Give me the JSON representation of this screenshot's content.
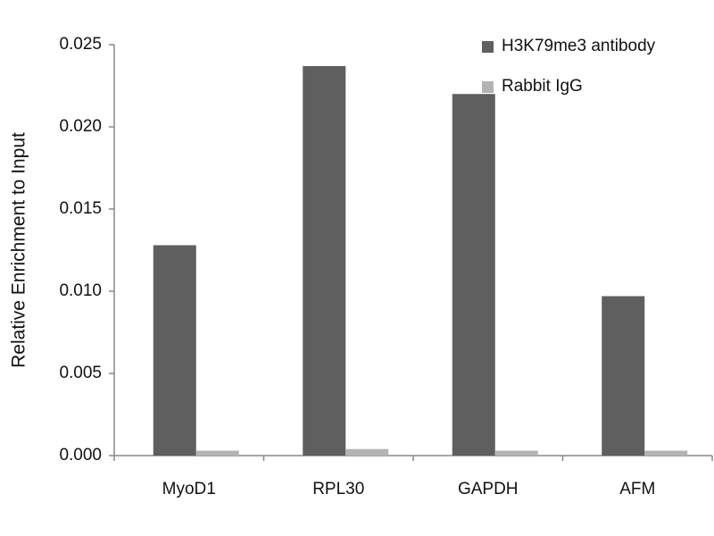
{
  "chart_data": {
    "type": "bar",
    "y_label": "Relative Enrichment to Input",
    "categories": [
      "MyoD1",
      "RPL30",
      "GAPDH",
      "AFM"
    ],
    "series": [
      {
        "name": "H3K79me3 antibody",
        "color": "#5f5f5f",
        "values": [
          0.0128,
          0.0237,
          0.022,
          0.0097
        ]
      },
      {
        "name": "Rabbit IgG",
        "color": "#b3b3b3",
        "values": [
          0.0003,
          0.0004,
          0.0003,
          0.0003
        ]
      }
    ],
    "ylim": [
      0,
      0.025
    ],
    "yticks": [
      {
        "value": 0,
        "label": "0.000"
      },
      0.005,
      {
        "value": 0.01,
        "label": "0.010"
      },
      0.015,
      {
        "value": 0.02,
        "label": "0.020"
      },
      0.025
    ],
    "grid": false,
    "legend": "top-right"
  }
}
